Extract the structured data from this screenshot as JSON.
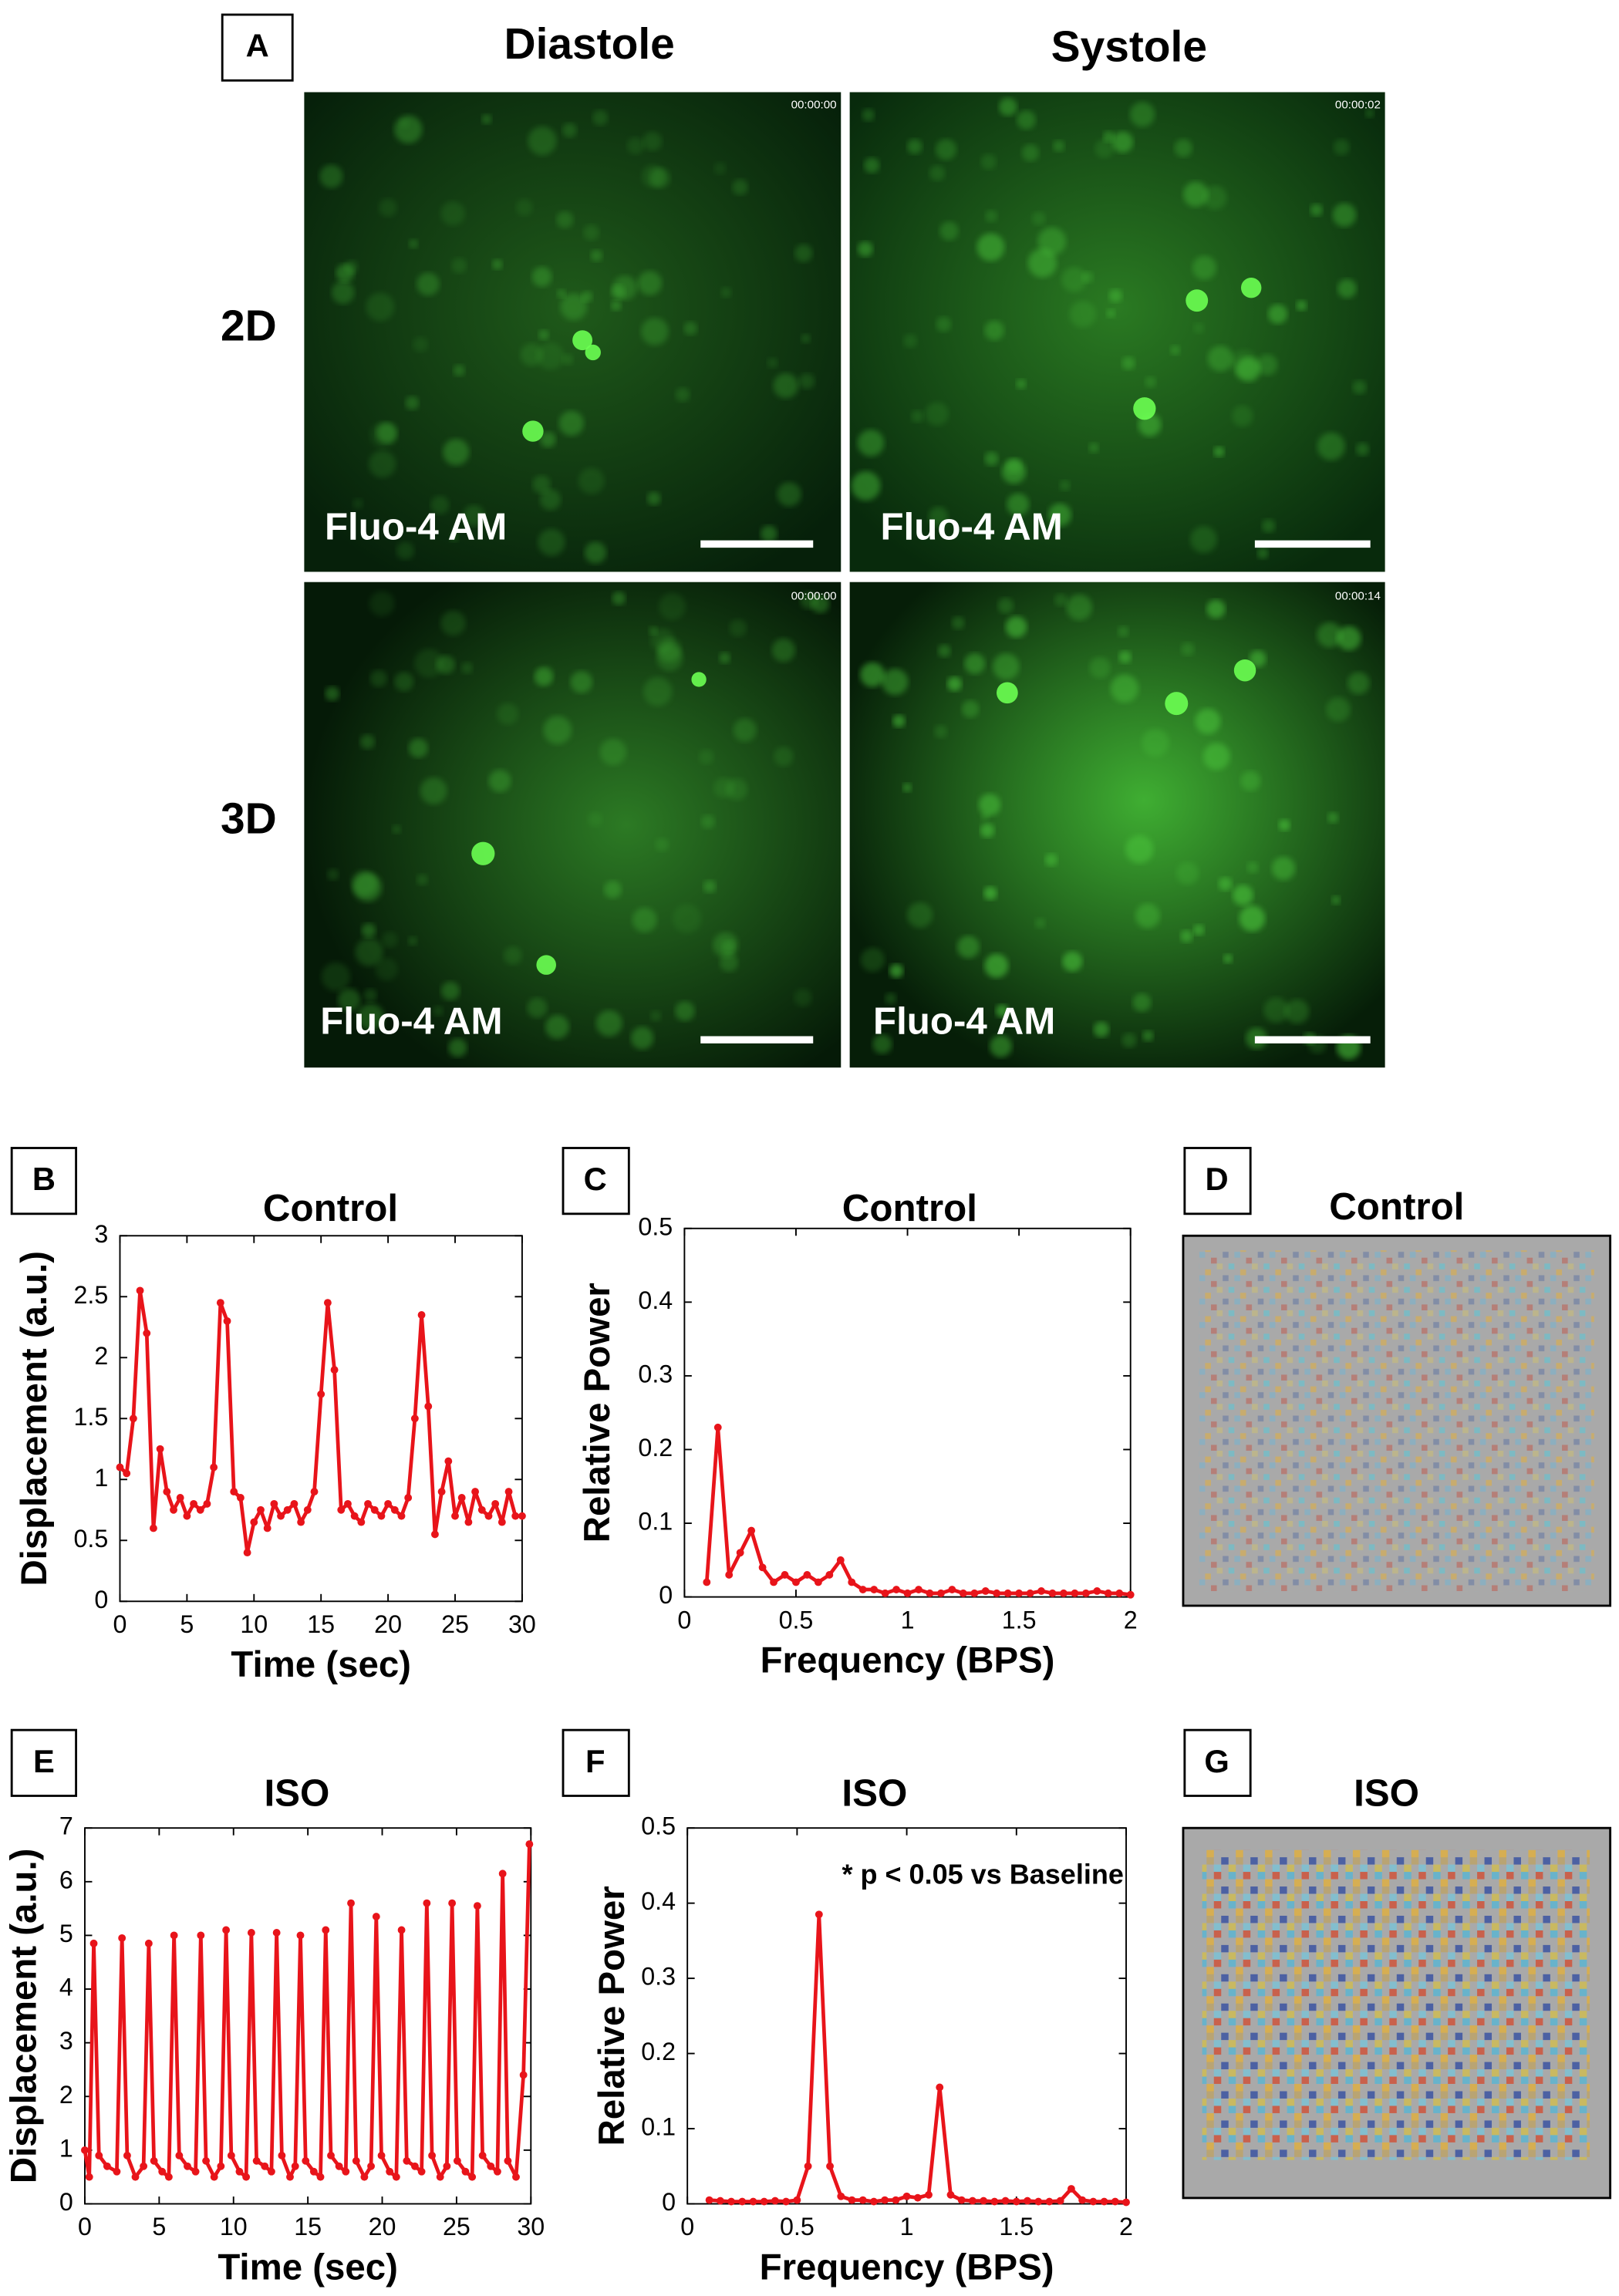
{
  "panel_labels": [
    "A",
    "B",
    "C",
    "D",
    "E",
    "F",
    "G"
  ],
  "panel_a": {
    "columns": [
      "Diastole",
      "Systole"
    ],
    "rows": [
      "2D",
      "3D"
    ],
    "images": [
      {
        "stain": "Fluo-4 AM",
        "timestamp": "00:00:00"
      },
      {
        "stain": "Fluo-4 AM",
        "timestamp": "00:00:02"
      },
      {
        "stain": "Fluo-4 AM",
        "timestamp": "00:00:00"
      },
      {
        "stain": "Fluo-4 AM",
        "timestamp": "00:00:14"
      }
    ]
  },
  "panel_d": {
    "title": "Control"
  },
  "panel_g": {
    "title": "ISO"
  },
  "chart_data": [
    {
      "type": "line",
      "title": "Control",
      "x_label": "Time (sec)",
      "y_label": "Displacement (a.u.)",
      "color": "#e8141a",
      "markers": true,
      "x": [
        0,
        0.5,
        1,
        1.5,
        2,
        2.5,
        3,
        3.5,
        4,
        4.5,
        5,
        5.5,
        6,
        6.5,
        7,
        7.5,
        8,
        8.5,
        9,
        9.5,
        10,
        10.5,
        11,
        11.5,
        12,
        12.5,
        13,
        13.5,
        14,
        14.5,
        15,
        15.5,
        16,
        16.5,
        17,
        17.5,
        18,
        18.5,
        19,
        19.5,
        20,
        20.5,
        21,
        21.5,
        22,
        22.5,
        23,
        23.5,
        24,
        24.5,
        25,
        25.5,
        26,
        26.5,
        27,
        27.5,
        28,
        28.5,
        29,
        29.5,
        30
      ],
      "values": [
        1.1,
        1.05,
        1.5,
        2.55,
        2.2,
        0.6,
        1.25,
        0.9,
        0.75,
        0.85,
        0.7,
        0.8,
        0.75,
        0.8,
        1.1,
        2.45,
        2.3,
        0.9,
        0.85,
        0.4,
        0.65,
        0.75,
        0.6,
        0.8,
        0.7,
        0.75,
        0.8,
        0.65,
        0.75,
        0.9,
        1.7,
        2.45,
        1.9,
        0.75,
        0.8,
        0.7,
        0.65,
        0.8,
        0.75,
        0.7,
        0.8,
        0.75,
        0.7,
        0.85,
        1.5,
        2.35,
        1.6,
        0.55,
        0.9,
        1.15,
        0.7,
        0.85,
        0.65,
        0.9,
        0.75,
        0.7,
        0.8,
        0.65,
        0.9,
        0.7,
        0.7
      ],
      "xlim": [
        0,
        30
      ],
      "xticks": [
        0,
        5,
        10,
        15,
        20,
        25,
        30
      ],
      "ylim": [
        0,
        3
      ],
      "yticks": [
        0,
        0.5,
        1,
        1.5,
        2,
        2.5,
        3
      ]
    },
    {
      "type": "line",
      "title": "Control",
      "x_label": "Frequency (BPS)",
      "y_label": "Relative Power",
      "color": "#e8141a",
      "markers": true,
      "x": [
        0.1,
        0.15,
        0.2,
        0.25,
        0.3,
        0.35,
        0.4,
        0.45,
        0.5,
        0.55,
        0.6,
        0.65,
        0.7,
        0.75,
        0.8,
        0.85,
        0.9,
        0.95,
        1.0,
        1.05,
        1.1,
        1.15,
        1.2,
        1.25,
        1.3,
        1.35,
        1.4,
        1.45,
        1.5,
        1.55,
        1.6,
        1.65,
        1.7,
        1.75,
        1.8,
        1.85,
        1.9,
        1.95,
        2.0
      ],
      "values": [
        0.02,
        0.23,
        0.03,
        0.06,
        0.09,
        0.04,
        0.02,
        0.03,
        0.02,
        0.03,
        0.02,
        0.03,
        0.05,
        0.02,
        0.01,
        0.01,
        0.005,
        0.01,
        0.005,
        0.01,
        0.005,
        0.005,
        0.01,
        0.005,
        0.005,
        0.008,
        0.005,
        0.005,
        0.005,
        0.005,
        0.008,
        0.005,
        0.005,
        0.005,
        0.005,
        0.008,
        0.005,
        0.005,
        0.003
      ],
      "xlim": [
        0,
        2
      ],
      "xticks": [
        0,
        0.5,
        1,
        1.5,
        2
      ],
      "ylim": [
        0,
        0.5
      ],
      "yticks": [
        0,
        0.1,
        0.2,
        0.3,
        0.4,
        0.5
      ]
    },
    {
      "type": "line",
      "title": "ISO",
      "x_label": "Time (sec)",
      "y_label": "Displacement (a.u.)",
      "color": "#e8141a",
      "markers": true,
      "x": [
        0,
        0.3,
        0.6,
        0.95,
        1.5,
        2.15,
        2.5,
        2.85,
        3.4,
        3.95,
        4.3,
        4.65,
        5.2,
        5.65,
        6.0,
        6.35,
        6.9,
        7.45,
        7.8,
        8.15,
        8.7,
        9.15,
        9.5,
        9.85,
        10.4,
        10.85,
        11.2,
        11.55,
        12.1,
        12.55,
        12.9,
        13.25,
        13.8,
        14.15,
        14.5,
        14.85,
        15.4,
        15.85,
        16.2,
        16.55,
        17.1,
        17.55,
        17.9,
        18.25,
        18.8,
        19.25,
        19.6,
        19.95,
        20.5,
        20.95,
        21.3,
        21.65,
        22.2,
        22.65,
        23.0,
        23.35,
        23.9,
        24.35,
        24.7,
        25.05,
        25.6,
        26.05,
        26.4,
        26.75,
        27.3,
        27.75,
        28.1,
        28.45,
        29.0,
        29.5,
        29.9
      ],
      "values": [
        1.0,
        0.5,
        4.85,
        0.9,
        0.7,
        0.6,
        4.95,
        0.9,
        0.5,
        0.7,
        4.85,
        0.8,
        0.6,
        0.5,
        5.0,
        0.9,
        0.7,
        0.6,
        5.0,
        0.8,
        0.5,
        0.7,
        5.1,
        0.9,
        0.6,
        0.5,
        5.05,
        0.8,
        0.7,
        0.6,
        5.05,
        0.9,
        0.5,
        0.7,
        5.0,
        0.8,
        0.6,
        0.5,
        5.1,
        0.9,
        0.7,
        0.6,
        5.6,
        0.8,
        0.5,
        0.7,
        5.35,
        0.9,
        0.6,
        0.5,
        5.1,
        0.8,
        0.7,
        0.6,
        5.6,
        0.9,
        0.5,
        0.7,
        5.6,
        0.8,
        0.6,
        0.5,
        5.55,
        0.9,
        0.7,
        0.6,
        6.15,
        0.8,
        0.5,
        2.4,
        6.7
      ],
      "xlim": [
        0,
        30
      ],
      "xticks": [
        0,
        5,
        10,
        15,
        20,
        25,
        30
      ],
      "ylim": [
        0,
        7
      ],
      "yticks": [
        0,
        1,
        2,
        3,
        4,
        5,
        6,
        7
      ]
    },
    {
      "type": "line",
      "title": "ISO",
      "x_label": "Frequency (BPS)",
      "y_label": "Relative Power",
      "annotation": "* p < 0.05 vs Baseline",
      "color": "#e8141a",
      "markers": true,
      "x": [
        0.1,
        0.15,
        0.2,
        0.25,
        0.3,
        0.35,
        0.4,
        0.45,
        0.5,
        0.55,
        0.6,
        0.65,
        0.7,
        0.75,
        0.8,
        0.85,
        0.9,
        0.95,
        1.0,
        1.05,
        1.1,
        1.15,
        1.2,
        1.25,
        1.3,
        1.35,
        1.4,
        1.45,
        1.5,
        1.55,
        1.6,
        1.65,
        1.7,
        1.75,
        1.8,
        1.85,
        1.9,
        1.95,
        2.0
      ],
      "values": [
        0.005,
        0.004,
        0.003,
        0.003,
        0.003,
        0.003,
        0.004,
        0.003,
        0.005,
        0.05,
        0.385,
        0.05,
        0.01,
        0.005,
        0.005,
        0.003,
        0.005,
        0.005,
        0.01,
        0.008,
        0.012,
        0.155,
        0.012,
        0.005,
        0.004,
        0.004,
        0.003,
        0.004,
        0.003,
        0.004,
        0.003,
        0.003,
        0.004,
        0.02,
        0.005,
        0.003,
        0.003,
        0.003,
        0.002
      ],
      "xlim": [
        0,
        2
      ],
      "xticks": [
        0,
        0.5,
        1,
        1.5,
        2
      ],
      "ylim": [
        0,
        0.5
      ],
      "yticks": [
        0,
        0.1,
        0.2,
        0.3,
        0.4,
        0.5
      ]
    }
  ]
}
